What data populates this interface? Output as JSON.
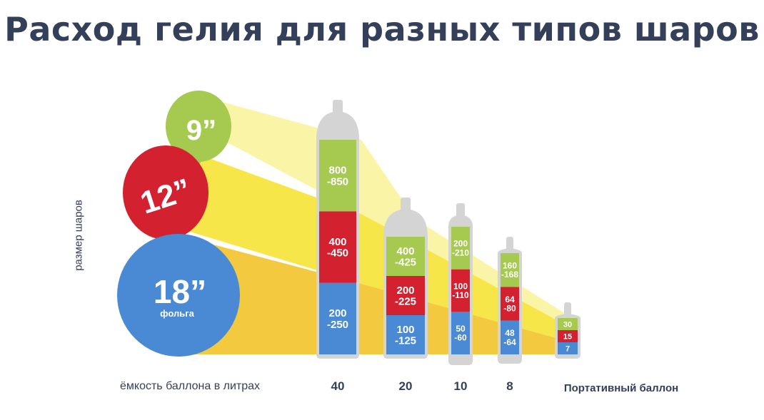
{
  "title": "Расход гелия для разных типов шаров",
  "chart_data": {
    "type": "bar",
    "title": "Расход гелия для разных типов шаров",
    "xlabel": "ёмкость баллона в литрах",
    "ylabel": "размер шаров",
    "categories": [
      "40",
      "20",
      "10",
      "8",
      "Портативный баллон"
    ],
    "series": [
      {
        "name": "18” фольга",
        "values": [
          "200 -250",
          "100 -125",
          "50 -60",
          "48 -64",
          "7"
        ]
      },
      {
        "name": "12”",
        "values": [
          "400 -450",
          "200 -225",
          "100 -110",
          "64 -80",
          "15"
        ]
      },
      {
        "name": "9”",
        "values": [
          "800 -850",
          "400 -425",
          "200 -210",
          "160 -168",
          "30"
        ]
      }
    ],
    "balloons": [
      {
        "size": "9”",
        "sub": ""
      },
      {
        "size": "12”",
        "sub": ""
      },
      {
        "size": "18”",
        "sub": "фольга"
      }
    ],
    "colors": {
      "foil": "#4a8ad4",
      "medium": "#d42130",
      "small": "#a6c950",
      "cylinder": "#d4d4d4",
      "beam_low": "#f2c93f",
      "beam_mid": "#f7e64a",
      "beam_high": "#faf5a6",
      "text": "#34405a"
    }
  }
}
